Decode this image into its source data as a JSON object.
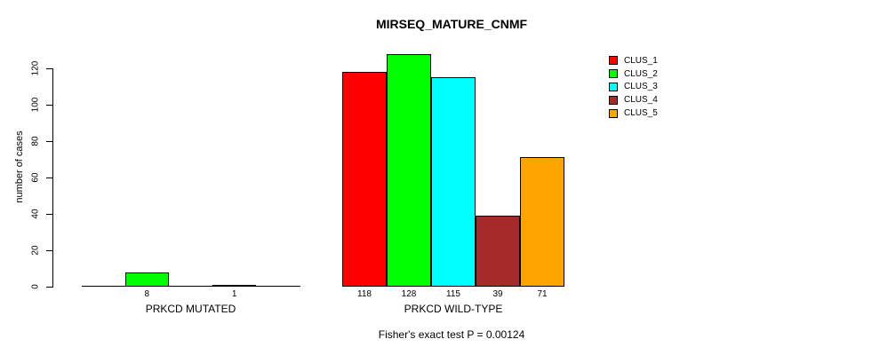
{
  "chart_data": {
    "type": "bar",
    "title": "MIRSEQ_MATURE_CNMF",
    "ylabel": "number of cases",
    "yticks": [
      0,
      20,
      40,
      60,
      80,
      100,
      120
    ],
    "ylim": [
      0,
      128
    ],
    "grid": false,
    "legend_position": "top-right",
    "series": [
      {
        "name": "CLUS_1",
        "color": "#FF0000"
      },
      {
        "name": "CLUS_2",
        "color": "#00FF00"
      },
      {
        "name": "CLUS_3",
        "color": "#00FFFF"
      },
      {
        "name": "CLUS_4",
        "color": "#A52A2A"
      },
      {
        "name": "CLUS_5",
        "color": "#FFA500"
      }
    ],
    "groups": [
      {
        "label": "PRKCD MUTATED",
        "values": [
          0,
          8,
          0,
          1,
          0
        ],
        "bar_labels": [
          "",
          "8",
          "",
          "1",
          ""
        ]
      },
      {
        "label": "PRKCD WILD-TYPE",
        "values": [
          118,
          128,
          115,
          39,
          71
        ],
        "bar_labels": [
          "118",
          "128",
          "115",
          "39",
          "71"
        ]
      }
    ],
    "annotation": "Fisher's exact test P = 0.00124",
    "colors": {
      "axis": "#000000",
      "text": "#000000",
      "background": "#FFFFFF"
    }
  }
}
